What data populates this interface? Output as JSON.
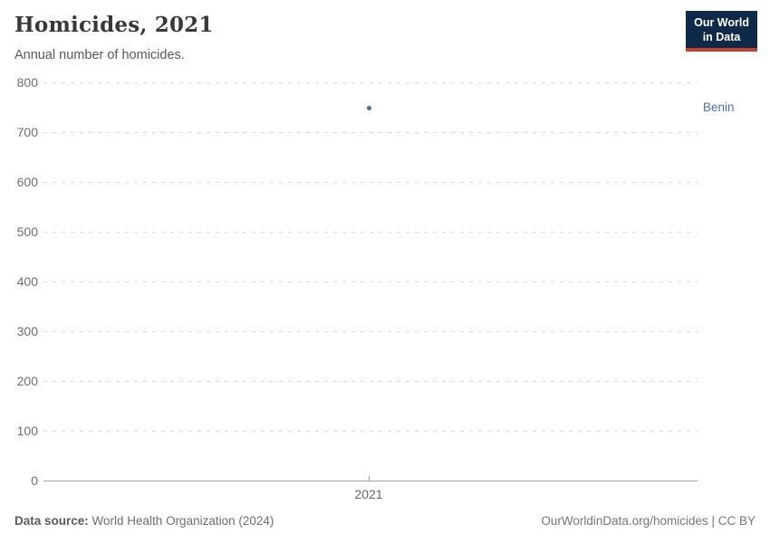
{
  "header": {
    "title": "Homicides, 2021",
    "subtitle": "Annual number of homicides.",
    "logo": {
      "line1": "Our World",
      "line2": "in Data"
    }
  },
  "footer": {
    "source_label": "Data source:",
    "source_text": " World Health Organization (2024)",
    "attribution": "OurWorldinData.org/homicides | CC BY"
  },
  "colors": {
    "series_blue": "#4c6fa8",
    "logo_navy": "#0f2949",
    "logo_red": "#c63d31",
    "gridline": "#dcdcdc",
    "axis": "#a1a1a1",
    "tick_text": "#6e6e6e",
    "title_text": "#383838"
  },
  "chart_data": {
    "type": "scatter",
    "title": "Homicides, 2021",
    "subtitle": "Annual number of homicides.",
    "xlabel": "",
    "ylabel": "",
    "x_ticks": [
      "2021"
    ],
    "y_ticks": [
      0,
      100,
      200,
      300,
      400,
      500,
      600,
      700,
      800
    ],
    "ylim": [
      0,
      800
    ],
    "grid": "horizontal-dashed",
    "legend_position": "entity-label-right",
    "series": [
      {
        "name": "Benin",
        "color": "#4c6fa8",
        "points": [
          {
            "x": 2021,
            "y": 749
          }
        ]
      }
    ]
  }
}
